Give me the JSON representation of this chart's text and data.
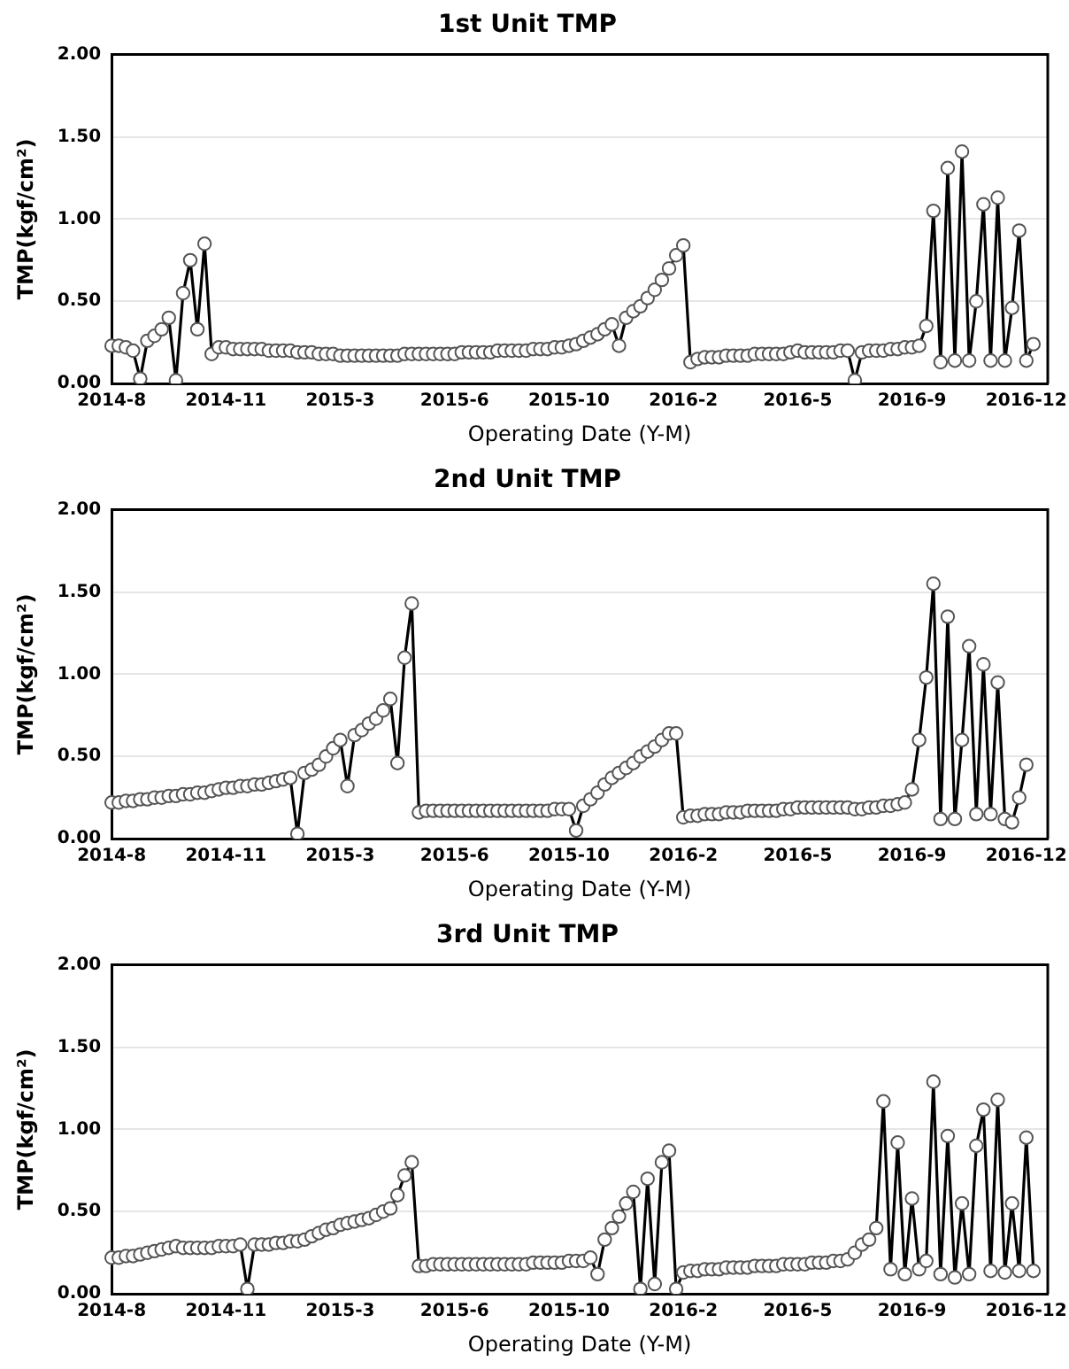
{
  "chart_data": [
    {
      "type": "line",
      "title": "1st Unit TMP",
      "xlabel": "Operating Date (Y-M)",
      "ylabel": "TMP(kgf/cm²)",
      "categories": [
        "2014-8",
        null,
        null,
        null,
        null,
        null,
        null,
        null,
        null,
        null,
        null,
        null,
        null,
        null,
        null,
        null,
        "2014-11",
        null,
        null,
        null,
        null,
        null,
        null,
        null,
        null,
        null,
        null,
        null,
        null,
        null,
        null,
        null,
        "2015-3",
        null,
        null,
        null,
        null,
        null,
        null,
        null,
        null,
        null,
        null,
        null,
        null,
        null,
        null,
        null,
        "2015-6",
        null,
        null,
        null,
        null,
        null,
        null,
        null,
        null,
        null,
        null,
        null,
        null,
        null,
        null,
        null,
        "2015-10",
        null,
        null,
        null,
        null,
        null,
        null,
        null,
        null,
        null,
        null,
        null,
        null,
        null,
        null,
        null,
        "2016-2",
        null,
        null,
        null,
        null,
        null,
        null,
        null,
        null,
        null,
        null,
        null,
        null,
        null,
        null,
        null,
        "2016-5",
        null,
        null,
        null,
        null,
        null,
        null,
        null,
        null,
        null,
        null,
        null,
        null,
        null,
        null,
        null,
        "2016-9",
        null,
        null,
        null,
        null,
        null,
        null,
        null,
        null,
        null,
        null,
        null,
        null,
        null,
        null,
        null,
        "2016-12",
        null,
        null,
        null
      ],
      "series": [
        {
          "color": "#000000",
          "values": [
            0.23,
            0.23,
            0.22,
            0.2,
            0.03,
            0.26,
            0.29,
            0.33,
            0.4,
            0.02,
            0.55,
            0.75,
            0.33,
            0.85,
            0.18,
            0.22,
            0.22,
            0.21,
            0.21,
            0.21,
            0.21,
            0.21,
            0.2,
            0.2,
            0.2,
            0.2,
            0.19,
            0.19,
            0.19,
            0.18,
            0.18,
            0.18,
            0.17,
            0.17,
            0.17,
            0.17,
            0.17,
            0.17,
            0.17,
            0.17,
            0.17,
            0.18,
            0.18,
            0.18,
            0.18,
            0.18,
            0.18,
            0.18,
            0.18,
            0.19,
            0.19,
            0.19,
            0.19,
            0.19,
            0.2,
            0.2,
            0.2,
            0.2,
            0.2,
            0.21,
            0.21,
            0.21,
            0.22,
            0.22,
            0.23,
            0.24,
            0.26,
            0.28,
            0.3,
            0.33,
            0.36,
            0.23,
            0.4,
            0.44,
            0.47,
            0.52,
            0.57,
            0.63,
            0.7,
            0.78,
            0.84,
            0.13,
            0.15,
            0.16,
            0.16,
            0.16,
            0.17,
            0.17,
            0.17,
            0.17,
            0.18,
            0.18,
            0.18,
            0.18,
            0.18,
            0.19,
            0.2,
            0.19,
            0.19,
            0.19,
            0.19,
            0.19,
            0.2,
            0.2,
            0.02,
            0.19,
            0.2,
            0.2,
            0.2,
            0.21,
            0.21,
            0.22,
            0.22,
            0.23,
            0.35,
            1.05,
            0.13,
            1.31,
            0.14,
            1.41,
            0.14,
            0.5,
            1.09,
            0.14,
            1.13,
            0.14,
            0.46,
            0.93,
            0.14,
            0.24,
            null,
            null
          ]
        }
      ],
      "ylim": [
        0,
        2
      ],
      "yticks": [
        {
          "value": 0,
          "label": "0.00"
        },
        {
          "value": 0.5,
          "label": "0.50"
        },
        {
          "value": 1,
          "label": "1.00"
        },
        {
          "value": 1.5,
          "label": "1.50"
        },
        {
          "value": 2,
          "label": "2.00"
        }
      ],
      "grid": "y",
      "legend": false,
      "marker": "circle",
      "line_style": "solid"
    },
    {
      "type": "line",
      "title": "2nd Unit TMP",
      "xlabel": "Operating Date (Y-M)",
      "ylabel": "TMP(kgf/cm²)",
      "categories": [
        "2014-8",
        null,
        null,
        null,
        null,
        null,
        null,
        null,
        null,
        null,
        null,
        null,
        null,
        null,
        null,
        null,
        "2014-11",
        null,
        null,
        null,
        null,
        null,
        null,
        null,
        null,
        null,
        null,
        null,
        null,
        null,
        null,
        null,
        "2015-3",
        null,
        null,
        null,
        null,
        null,
        null,
        null,
        null,
        null,
        null,
        null,
        null,
        null,
        null,
        null,
        "2015-6",
        null,
        null,
        null,
        null,
        null,
        null,
        null,
        null,
        null,
        null,
        null,
        null,
        null,
        null,
        null,
        "2015-10",
        null,
        null,
        null,
        null,
        null,
        null,
        null,
        null,
        null,
        null,
        null,
        null,
        null,
        null,
        null,
        "2016-2",
        null,
        null,
        null,
        null,
        null,
        null,
        null,
        null,
        null,
        null,
        null,
        null,
        null,
        null,
        null,
        "2016-5",
        null,
        null,
        null,
        null,
        null,
        null,
        null,
        null,
        null,
        null,
        null,
        null,
        null,
        null,
        null,
        "2016-9",
        null,
        null,
        null,
        null,
        null,
        null,
        null,
        null,
        null,
        null,
        null,
        null,
        null,
        null,
        null,
        "2016-12",
        null,
        null,
        null
      ],
      "series": [
        {
          "color": "#000000",
          "values": [
            0.22,
            0.22,
            0.23,
            0.23,
            0.24,
            0.24,
            0.25,
            0.25,
            0.26,
            0.26,
            0.27,
            0.27,
            0.28,
            0.28,
            0.29,
            0.3,
            0.31,
            0.31,
            0.32,
            0.32,
            0.33,
            0.33,
            0.34,
            0.35,
            0.36,
            0.37,
            0.03,
            0.4,
            0.42,
            0.45,
            0.5,
            0.55,
            0.6,
            0.32,
            0.63,
            0.66,
            0.7,
            0.73,
            0.78,
            0.85,
            0.46,
            1.1,
            1.43,
            0.16,
            0.17,
            0.17,
            0.17,
            0.17,
            0.17,
            0.17,
            0.17,
            0.17,
            0.17,
            0.17,
            0.17,
            0.17,
            0.17,
            0.17,
            0.17,
            0.17,
            0.17,
            0.17,
            0.18,
            0.18,
            0.18,
            0.05,
            0.2,
            0.24,
            0.28,
            0.33,
            0.37,
            0.4,
            0.43,
            0.46,
            0.5,
            0.53,
            0.56,
            0.6,
            0.64,
            0.64,
            0.13,
            0.14,
            0.14,
            0.15,
            0.15,
            0.15,
            0.16,
            0.16,
            0.16,
            0.17,
            0.17,
            0.17,
            0.17,
            0.17,
            0.18,
            0.18,
            0.19,
            0.19,
            0.19,
            0.19,
            0.19,
            0.19,
            0.19,
            0.19,
            0.18,
            0.18,
            0.19,
            0.19,
            0.2,
            0.2,
            0.21,
            0.22,
            0.3,
            0.6,
            0.98,
            1.55,
            0.12,
            1.35,
            0.12,
            0.6,
            1.17,
            0.15,
            1.06,
            0.15,
            0.95,
            0.12,
            0.1,
            0.25,
            0.45,
            null,
            null,
            null
          ]
        }
      ],
      "ylim": [
        0,
        2
      ],
      "yticks": [
        {
          "value": 0,
          "label": "0.00"
        },
        {
          "value": 0.5,
          "label": "0.50"
        },
        {
          "value": 1,
          "label": "1.00"
        },
        {
          "value": 1.5,
          "label": "1.50"
        },
        {
          "value": 2,
          "label": "2.00"
        }
      ],
      "grid": "y",
      "legend": false,
      "marker": "circle",
      "line_style": "solid"
    },
    {
      "type": "line",
      "title": "3rd Unit TMP",
      "xlabel": "Operating Date (Y-M)",
      "ylabel": "TMP(kgf/cm²)",
      "categories": [
        "2014-8",
        null,
        null,
        null,
        null,
        null,
        null,
        null,
        null,
        null,
        null,
        null,
        null,
        null,
        null,
        null,
        "2014-11",
        null,
        null,
        null,
        null,
        null,
        null,
        null,
        null,
        null,
        null,
        null,
        null,
        null,
        null,
        null,
        "2015-3",
        null,
        null,
        null,
        null,
        null,
        null,
        null,
        null,
        null,
        null,
        null,
        null,
        null,
        null,
        null,
        "2015-6",
        null,
        null,
        null,
        null,
        null,
        null,
        null,
        null,
        null,
        null,
        null,
        null,
        null,
        null,
        null,
        "2015-10",
        null,
        null,
        null,
        null,
        null,
        null,
        null,
        null,
        null,
        null,
        null,
        null,
        null,
        null,
        null,
        "2016-2",
        null,
        null,
        null,
        null,
        null,
        null,
        null,
        null,
        null,
        null,
        null,
        null,
        null,
        null,
        null,
        "2016-5",
        null,
        null,
        null,
        null,
        null,
        null,
        null,
        null,
        null,
        null,
        null,
        null,
        null,
        null,
        null,
        "2016-9",
        null,
        null,
        null,
        null,
        null,
        null,
        null,
        null,
        null,
        null,
        null,
        null,
        null,
        null,
        null,
        "2016-12",
        null,
        null,
        null
      ],
      "series": [
        {
          "color": "#000000",
          "values": [
            0.22,
            0.22,
            0.23,
            0.23,
            0.24,
            0.25,
            0.26,
            0.27,
            0.28,
            0.29,
            0.28,
            0.28,
            0.28,
            0.28,
            0.28,
            0.29,
            0.29,
            0.29,
            0.3,
            0.03,
            0.3,
            0.3,
            0.3,
            0.31,
            0.31,
            0.32,
            0.32,
            0.33,
            0.35,
            0.37,
            0.39,
            0.4,
            0.42,
            0.43,
            0.44,
            0.45,
            0.46,
            0.48,
            0.5,
            0.52,
            0.6,
            0.72,
            0.8,
            0.17,
            0.17,
            0.18,
            0.18,
            0.18,
            0.18,
            0.18,
            0.18,
            0.18,
            0.18,
            0.18,
            0.18,
            0.18,
            0.18,
            0.18,
            0.18,
            0.19,
            0.19,
            0.19,
            0.19,
            0.19,
            0.2,
            0.2,
            0.2,
            0.22,
            0.12,
            0.33,
            0.4,
            0.47,
            0.55,
            0.62,
            0.03,
            0.7,
            0.06,
            0.8,
            0.87,
            0.03,
            0.13,
            0.14,
            0.14,
            0.15,
            0.15,
            0.15,
            0.16,
            0.16,
            0.16,
            0.16,
            0.17,
            0.17,
            0.17,
            0.17,
            0.18,
            0.18,
            0.18,
            0.18,
            0.19,
            0.19,
            0.19,
            0.2,
            0.2,
            0.21,
            0.25,
            0.3,
            0.33,
            0.4,
            1.17,
            0.15,
            0.92,
            0.12,
            0.58,
            0.15,
            0.2,
            1.29,
            0.12,
            0.96,
            0.1,
            0.55,
            0.12,
            0.9,
            1.12,
            0.14,
            1.18,
            0.13,
            0.55,
            0.14,
            0.95,
            0.14,
            null,
            null
          ]
        }
      ],
      "ylim": [
        0,
        2
      ],
      "yticks": [
        {
          "value": 0,
          "label": "0.00"
        },
        {
          "value": 0.5,
          "label": "0.50"
        },
        {
          "value": 1,
          "label": "1.00"
        },
        {
          "value": 1.5,
          "label": "1.50"
        },
        {
          "value": 2,
          "label": "2.00"
        }
      ],
      "grid": "y",
      "legend": false,
      "marker": "circle",
      "line_style": "solid"
    }
  ]
}
